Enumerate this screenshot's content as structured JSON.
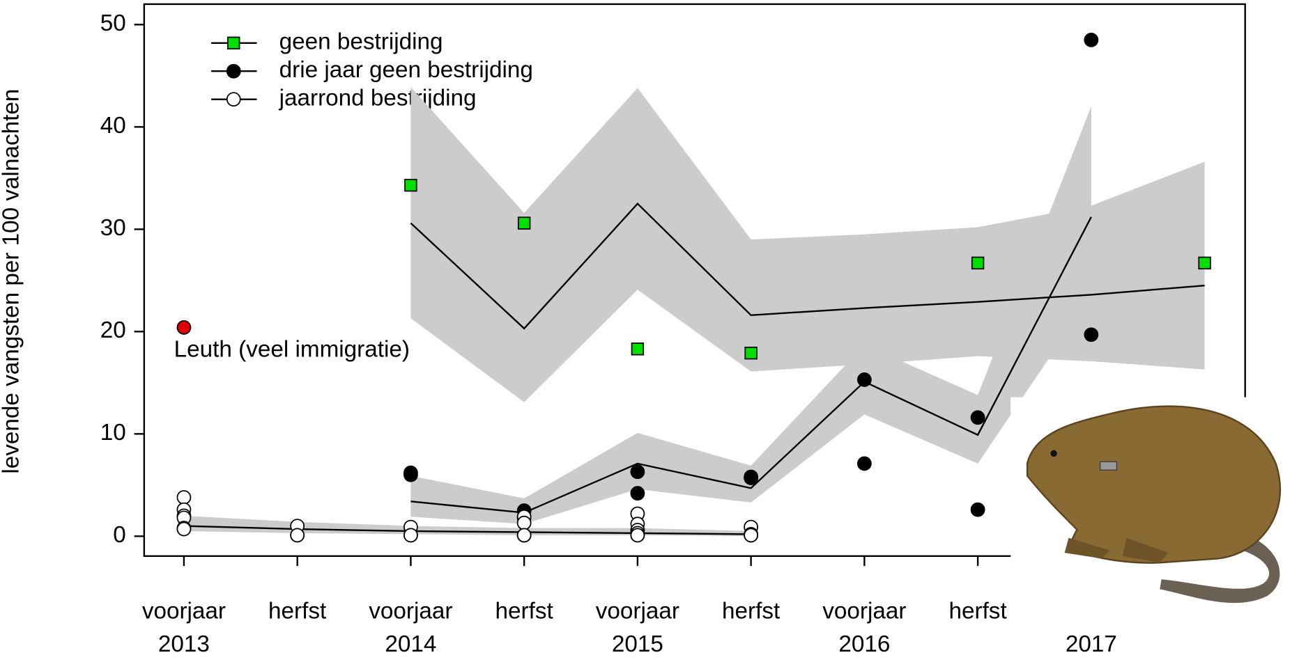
{
  "chart_data": {
    "type": "line",
    "y_label": "levende vangsten per 100 valnachten",
    "categories": [
      "voorjaar",
      "herfst",
      "voorjaar",
      "herfst",
      "voorjaar",
      "herfst",
      "voorjaar",
      "herfst",
      null,
      null
    ],
    "year_labels": [
      "2013",
      "2014",
      "2015",
      "2016",
      "2017"
    ],
    "ylim": [
      -1.94,
      52.0
    ],
    "yticks": [
      0,
      10,
      20,
      30,
      40,
      50
    ],
    "band_color": "#cccccc",
    "series": [
      {
        "name": "geen bestrijding",
        "color": "#00e000",
        "marker": "square",
        "x": [
          2,
          3,
          4,
          5,
          7,
          9
        ],
        "values": [
          34.3,
          30.6,
          18.3,
          17.9,
          26.7,
          26.7
        ],
        "fit": {
          "x": [
            2,
            3,
            4,
            5,
            6,
            7,
            8,
            9
          ],
          "values": [
            30.6,
            20.3,
            32.5,
            21.6,
            22.3,
            22.9,
            23.6,
            24.5
          ],
          "lower": [
            21.3,
            13.1,
            24.1,
            16.1,
            16.8,
            17.6,
            17.1,
            16.3
          ],
          "upper": [
            43.9,
            31.6,
            43.8,
            29.0,
            29.5,
            30.2,
            32.3,
            36.6
          ]
        }
      },
      {
        "name": "drie jaar geen bestrijding",
        "color": "#000000",
        "marker": "circle",
        "x": [
          2,
          2,
          3,
          3,
          4,
          4,
          5,
          5,
          6,
          6,
          7,
          7,
          8,
          8
        ],
        "values": [
          6.2,
          6.0,
          2.5,
          1.8,
          6.3,
          4.2,
          5.8,
          5.7,
          15.3,
          7.1,
          11.6,
          2.6,
          48.5,
          19.7
        ],
        "fit": {
          "x": [
            2,
            3,
            4,
            5,
            6,
            7,
            8
          ],
          "values": [
            3.4,
            2.3,
            7.1,
            4.7,
            15.1,
            9.9,
            31.2
          ],
          "lower": [
            1.9,
            1.2,
            4.6,
            3.3,
            11.9,
            7.1,
            23.5
          ],
          "upper": [
            5.9,
            3.7,
            10.1,
            6.9,
            18.7,
            13.8,
            42.0
          ]
        }
      },
      {
        "name": "jaarrond bestrijding",
        "color": "#ffffff",
        "marker": "circle",
        "x": [
          0,
          0,
          0,
          0,
          0,
          0,
          1,
          1,
          1,
          2,
          2,
          2,
          3,
          3,
          3,
          3,
          3,
          4,
          4,
          4,
          4,
          4,
          4,
          5,
          5,
          5,
          5
        ],
        "values": [
          3.8,
          2.6,
          2.0,
          1.8,
          0.8,
          0.7,
          1.0,
          0.1,
          0.1,
          0.9,
          0.1,
          0.1,
          1.9,
          1.3,
          0.1,
          0.1,
          0.1,
          2.2,
          1.2,
          0.6,
          0.3,
          0.1,
          0.1,
          0.9,
          0.2,
          0.1,
          0.1
        ],
        "fit": {
          "x": [
            0,
            1,
            2,
            3,
            4,
            5
          ],
          "values": [
            1.0,
            0.7,
            0.5,
            0.4,
            0.3,
            0.2
          ],
          "lower": [
            0.5,
            0.3,
            0.2,
            0.1,
            0.1,
            0.0
          ],
          "upper": [
            2.0,
            1.4,
            1.0,
            0.8,
            0.8,
            0.5
          ]
        }
      }
    ],
    "annotation": {
      "text": "Leuth (veel immigratie)",
      "x": 0,
      "y": 20.4,
      "color": "#e00000"
    }
  }
}
